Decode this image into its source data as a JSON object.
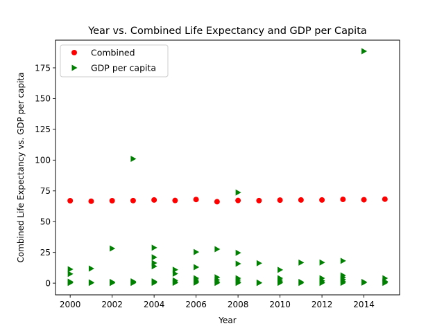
{
  "chart_data": {
    "type": "scatter",
    "title": "Year vs. Combined Life Expectancy and GDP per Capita",
    "xlabel": "Year",
    "ylabel": "Combined Life Expectancy vs. GDP per capita",
    "xlim": [
      1999.3,
      2015.7
    ],
    "ylim": [
      -9.5,
      197.5
    ],
    "xticks": [
      2000,
      2002,
      2004,
      2006,
      2008,
      2010,
      2012,
      2014
    ],
    "yticks": [
      0,
      25,
      50,
      75,
      100,
      125,
      150,
      175
    ],
    "grid": false,
    "legend_position": "top-left",
    "series": [
      {
        "name": "Combined",
        "marker": "circle",
        "color": "#ff0000",
        "points": [
          [
            2000,
            67.0
          ],
          [
            2001,
            66.6
          ],
          [
            2002,
            67.0
          ],
          [
            2003,
            67.1
          ],
          [
            2004,
            67.6
          ],
          [
            2005,
            67.2
          ],
          [
            2006,
            68.0
          ],
          [
            2007,
            66.2
          ],
          [
            2008,
            67.2
          ],
          [
            2009,
            67.1
          ],
          [
            2010,
            67.5
          ],
          [
            2011,
            67.6
          ],
          [
            2012,
            67.6
          ],
          [
            2013,
            68.1
          ],
          [
            2014,
            67.8
          ],
          [
            2015,
            68.3
          ]
        ]
      },
      {
        "name": "GDP per capita",
        "marker": "triangle-right",
        "color": "#008000",
        "points": [
          [
            2000,
            11.3
          ],
          [
            2000,
            7.5
          ],
          [
            2000,
            1.2
          ],
          [
            2000,
            0.6
          ],
          [
            2000,
            0.2
          ],
          [
            2001,
            11.9
          ],
          [
            2001,
            0.6
          ],
          [
            2001,
            0.2
          ],
          [
            2002,
            28.2
          ],
          [
            2002,
            1.0
          ],
          [
            2002,
            0.5
          ],
          [
            2002,
            0.1
          ],
          [
            2003,
            101.0
          ],
          [
            2003,
            1.5
          ],
          [
            2003,
            1.0
          ],
          [
            2003,
            0.5
          ],
          [
            2003,
            0.2
          ],
          [
            2004,
            28.8
          ],
          [
            2004,
            21.0
          ],
          [
            2004,
            16.4
          ],
          [
            2004,
            13.7
          ],
          [
            2004,
            1.5
          ],
          [
            2004,
            0.9
          ],
          [
            2004,
            0.3
          ],
          [
            2005,
            10.9
          ],
          [
            2005,
            7.7
          ],
          [
            2005,
            2.2
          ],
          [
            2005,
            1.0
          ],
          [
            2005,
            0.3
          ],
          [
            2006,
            25.3
          ],
          [
            2006,
            13.0
          ],
          [
            2006,
            4.0
          ],
          [
            2006,
            2.5
          ],
          [
            2006,
            1.5
          ],
          [
            2006,
            0.4
          ],
          [
            2007,
            27.6
          ],
          [
            2007,
            4.8
          ],
          [
            2007,
            2.6
          ],
          [
            2007,
            1.0
          ],
          [
            2007,
            0.2
          ],
          [
            2008,
            73.7
          ],
          [
            2008,
            24.7
          ],
          [
            2008,
            15.8
          ],
          [
            2008,
            4.0
          ],
          [
            2008,
            2.5
          ],
          [
            2008,
            1.0
          ],
          [
            2008,
            0.2
          ],
          [
            2009,
            16.2
          ],
          [
            2009,
            0.5
          ],
          [
            2009,
            0.1
          ],
          [
            2010,
            10.8
          ],
          [
            2010,
            4.0
          ],
          [
            2010,
            2.5
          ],
          [
            2010,
            1.2
          ],
          [
            2010,
            0.3
          ],
          [
            2011,
            16.7
          ],
          [
            2011,
            1.0
          ],
          [
            2011,
            0.2
          ],
          [
            2012,
            16.8
          ],
          [
            2012,
            4.0
          ],
          [
            2012,
            2.0
          ],
          [
            2012,
            1.0
          ],
          [
            2012,
            0.2
          ],
          [
            2013,
            18.1
          ],
          [
            2013,
            6.3
          ],
          [
            2013,
            4.8
          ],
          [
            2013,
            3.0
          ],
          [
            2013,
            1.5
          ],
          [
            2013,
            0.3
          ],
          [
            2014,
            188.5
          ],
          [
            2014,
            1.0
          ],
          [
            2014,
            0.4
          ],
          [
            2015,
            4.0
          ],
          [
            2015,
            1.5
          ],
          [
            2015,
            0.9
          ],
          [
            2015,
            0.2
          ]
        ]
      }
    ]
  }
}
